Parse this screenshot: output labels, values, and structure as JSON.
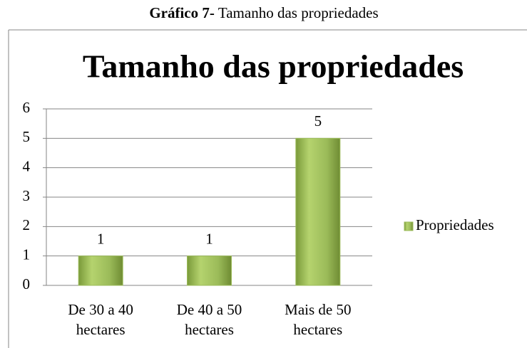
{
  "chart_data": {
    "type": "bar",
    "caption_label": "Gráfico 7-",
    "caption": "Tamanho das propriedades",
    "title": "Tamanho das propriedades",
    "categories": [
      "De 30 a 40 hectares",
      "De 40 a 50 hectares",
      "Mais de 50 hectares"
    ],
    "series": [
      {
        "name": "Propriedades",
        "color": "#9bbb59",
        "values": [
          1,
          1,
          5
        ]
      }
    ],
    "ylim": [
      0,
      6
    ],
    "yticks": [
      0,
      1,
      2,
      3,
      4,
      5,
      6
    ],
    "grid": true,
    "legend": "right"
  }
}
